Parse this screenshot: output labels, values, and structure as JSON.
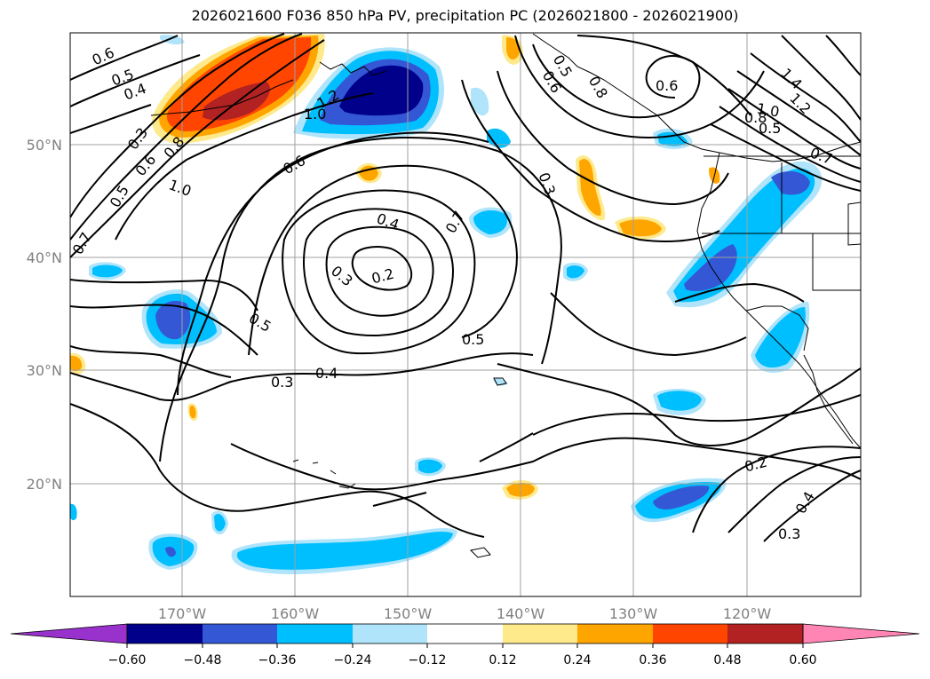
{
  "title": "2026021600 F036 850 hPa PV, precipitation PC (2026021800 - 2026021900)",
  "map": {
    "lon_labels": [
      "170°W",
      "160°W",
      "150°W",
      "140°W",
      "130°W",
      "120°W"
    ],
    "lat_labels": [
      "50°N",
      "40°N",
      "30°N",
      "20°N"
    ],
    "contour_labels": [
      "0.6",
      "0.5",
      "0.4",
      "0.3",
      "0.5",
      "0.6",
      "0.8",
      "1.0",
      "1.0",
      "1.2",
      "0.7",
      "0.5",
      "0.6",
      "0.8",
      "0.6",
      "1.4",
      "1.2",
      "1.0",
      "0.8",
      "0.5",
      "0.7",
      "0.6",
      "0.4",
      "0.7",
      "0.3",
      "0.2",
      "0.3",
      "0.5",
      "0.5",
      "0.4",
      "0.3",
      "0.2",
      "0.4",
      "0.3"
    ],
    "colors": {
      "land_line": "#000000",
      "grid": "#a0a0a0",
      "contour": "#000000"
    }
  },
  "colorbar": {
    "tick_labels": [
      "−0.60",
      "−0.48",
      "−0.36",
      "−0.24",
      "−0.12",
      "0.12",
      "0.24",
      "0.36",
      "0.48",
      "0.60"
    ],
    "colors": [
      "#9932cc",
      "#00008b",
      "#3457d5",
      "#00bfff",
      "#afe4fb",
      "#ffffff",
      "#fee98b",
      "#ffa500",
      "#ff4500",
      "#b22222",
      "#ff85b5"
    ]
  }
}
